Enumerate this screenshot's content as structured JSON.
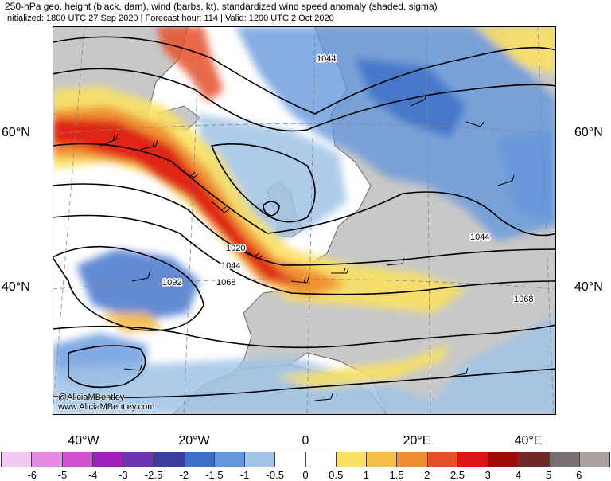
{
  "title": {
    "line1": "250-hPa geo. height (black, dam), wind (barbs, kt), standardized wind speed anomaly (shaded, sigma)",
    "line2": "Initialized: 1800 UTC 27 Sep 2020 | Forecast hour: 114 | Valid: 1200 UTC 2 Oct 2020"
  },
  "map": {
    "lat_labels": [
      "60°N",
      "40°N"
    ],
    "lon_labels": [
      "40°W",
      "20°W",
      "0",
      "20°E",
      "40°E"
    ],
    "contour_labels": [
      "1044",
      "1020",
      "1044",
      "1068",
      "1092",
      "1044",
      "1068"
    ],
    "credit": [
      "@AliciaMBentley",
      "www.AliciaMBentley.com"
    ],
    "colors": {
      "land": "#c8c8c8",
      "coast": "#666666",
      "contour": "#000000"
    }
  },
  "colorbar": {
    "labels": [
      "-6",
      "-5",
      "-4",
      "-3",
      "-2.5",
      "-2",
      "-1.5",
      "-1",
      "-0.5",
      "0",
      "0.5",
      "1",
      "1.5",
      "2",
      "2.5",
      "3",
      "4",
      "5",
      "6"
    ],
    "colors": [
      "#f0c8f0",
      "#e48ce4",
      "#d250d2",
      "#a01ebe",
      "#6e32b4",
      "#3c3ca0",
      "#3c6ec8",
      "#6496dc",
      "#a0c3e6",
      "#ffffff",
      "#ffffff",
      "#fae164",
      "#f5be46",
      "#f08c32",
      "#e65028",
      "#dc1414",
      "#a00a0a",
      "#6e2828",
      "#787070",
      "#aaa0a0"
    ]
  }
}
